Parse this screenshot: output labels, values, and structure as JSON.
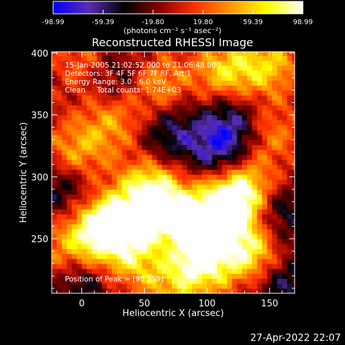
{
  "colorbar": {
    "ticks": [
      "-98.99",
      "-59.39",
      "-19.80",
      "19.80",
      "59.39",
      "98.99"
    ],
    "unit_label": "(photons cm⁻² s⁻¹ asec⁻²)",
    "range": [
      -98.99,
      98.99
    ],
    "colors": [
      "#0000ff",
      "#5a2db4",
      "#000000",
      "#8b0000",
      "#ff3300",
      "#ff9900",
      "#ffff00",
      "#ffffff"
    ]
  },
  "title": "Reconstructed RHESSI Image",
  "info": {
    "line1": "15-Jan-2005 21:02:52.000 to 21:06:48.000",
    "line2": "Detectors: 3F 4F 5F 6F 7F 8F, Att 1",
    "line3": "Energy Range: 3.0 - 6.0 keV",
    "line4": "Clean     Total counts: 1.74E+03",
    "peak": "Position of Peak = [90,259]"
  },
  "footer_date": "27-Apr-2022 22:07",
  "chart_data": {
    "type": "heatmap",
    "title": "Reconstructed RHESSI Image",
    "xlabel": "Heliocentric X (arcsec)",
    "ylabel": "Heliocentric Y (arcsec)",
    "xlim": [
      -24,
      170
    ],
    "ylim": [
      206,
      401
    ],
    "xticks": [
      0,
      50,
      100,
      150
    ],
    "yticks": [
      250,
      300,
      350,
      400
    ],
    "peak": [
      90,
      259
    ],
    "blobs": [
      {
        "x": 25,
        "y": 262,
        "v": 85
      },
      {
        "x": 10,
        "y": 255,
        "v": 60
      },
      {
        "x": 55,
        "y": 290,
        "v": 80
      },
      {
        "x": 60,
        "y": 270,
        "v": 70
      },
      {
        "x": 90,
        "y": 259,
        "v": 98.99
      },
      {
        "x": 115,
        "y": 275,
        "v": 90
      },
      {
        "x": 130,
        "y": 290,
        "v": 80
      },
      {
        "x": 95,
        "y": 230,
        "v": 85
      },
      {
        "x": 135,
        "y": 240,
        "v": 90
      },
      {
        "x": 40,
        "y": 235,
        "v": 55
      },
      {
        "x": -5,
        "y": 320,
        "v": 55
      },
      {
        "x": 25,
        "y": 345,
        "v": 50
      },
      {
        "x": 60,
        "y": 375,
        "v": 55
      },
      {
        "x": 115,
        "y": 385,
        "v": 70
      },
      {
        "x": 150,
        "y": 390,
        "v": 60
      },
      {
        "x": 150,
        "y": 335,
        "v": 45
      },
      {
        "x": 70,
        "y": 215,
        "v": 45
      },
      {
        "x": -15,
        "y": 240,
        "v": 40
      },
      {
        "x": 0,
        "y": 395,
        "v": 35
      },
      {
        "x": 110,
        "y": 320,
        "v": -60
      },
      {
        "x": 120,
        "y": 345,
        "v": -55
      },
      {
        "x": 70,
        "y": 335,
        "v": -50
      },
      {
        "x": 155,
        "y": 270,
        "v": -55
      },
      {
        "x": -15,
        "y": 290,
        "v": -45
      },
      {
        "x": 30,
        "y": 380,
        "v": -40
      },
      {
        "x": 160,
        "y": 215,
        "v": -50
      },
      {
        "x": 0,
        "y": 215,
        "v": -45
      },
      {
        "x": 75,
        "y": 245,
        "v": -25
      }
    ]
  }
}
